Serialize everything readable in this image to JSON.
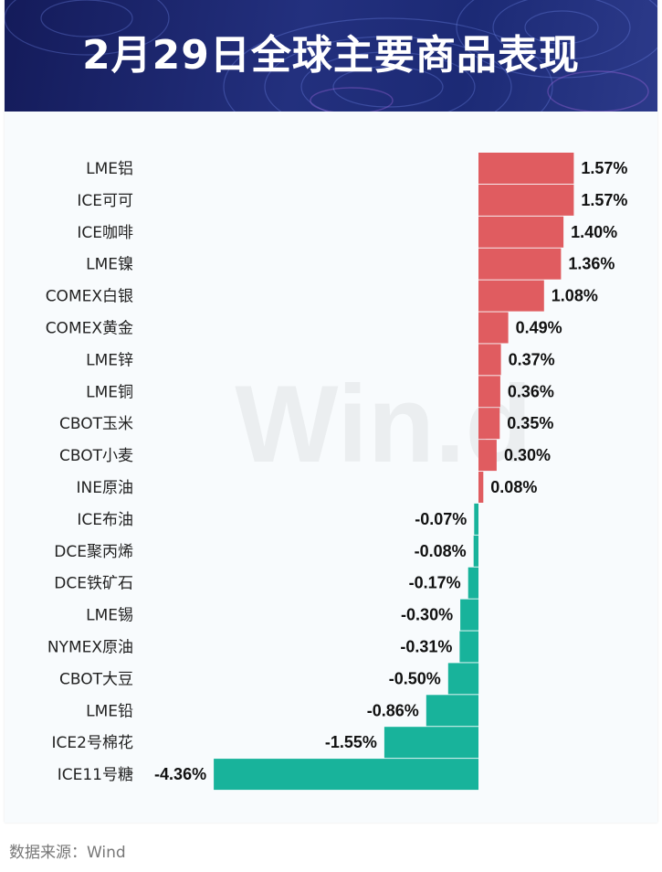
{
  "title": "2月29日全球主要商品表现",
  "watermark": "Win.d",
  "footer": {
    "source": "数据来源：Wind"
  },
  "colors": {
    "positive": "#e05c60",
    "negative": "#18b39b",
    "header_bg": "#1b2670"
  },
  "chart_data": {
    "type": "bar",
    "orientation": "horizontal",
    "title": "2月29日全球主要商品表现",
    "unit": "%",
    "categories": [
      "LME铝",
      "ICE可可",
      "ICE咖啡",
      "LME镍",
      "COMEX白银",
      "COMEX黄金",
      "LME锌",
      "LME铜",
      "CBOT玉米",
      "CBOT小麦",
      "INE原油",
      "ICE布油",
      "DCE聚丙烯",
      "DCE铁矿石",
      "LME锡",
      "NYMEX原油",
      "CBOT大豆",
      "LME铅",
      "ICE2号棉花",
      "ICE11号糖"
    ],
    "values": [
      1.57,
      1.57,
      1.4,
      1.36,
      1.08,
      0.49,
      0.37,
      0.36,
      0.35,
      0.3,
      0.08,
      -0.07,
      -0.08,
      -0.17,
      -0.3,
      -0.31,
      -0.5,
      -0.86,
      -1.55,
      -4.36
    ],
    "labels": [
      "1.57%",
      "1.57%",
      "1.40%",
      "1.36%",
      "1.08%",
      "0.49%",
      "0.37%",
      "0.36%",
      "0.35%",
      "0.30%",
      "0.08%",
      "-0.07%",
      "-0.08%",
      "-0.17%",
      "-0.30%",
      "-0.31%",
      "-0.50%",
      "-0.86%",
      "-1.55%",
      "-4.36%"
    ],
    "xlim": [
      -4.36,
      1.57
    ]
  }
}
